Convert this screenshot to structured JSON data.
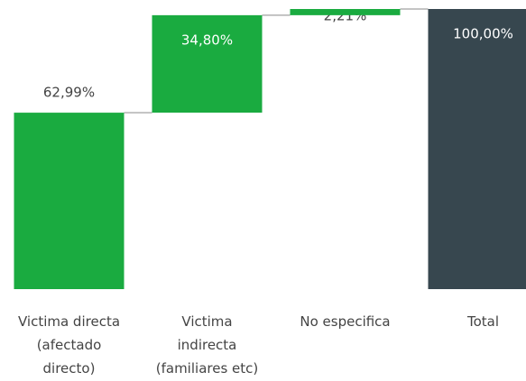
{
  "chart_data": {
    "type": "waterfall",
    "categories": [
      [
        "Victima directa",
        "(afectado",
        "directo)"
      ],
      [
        "Victima",
        "indirecta",
        "(familiares etc)"
      ],
      [
        "No especifica"
      ],
      [
        "Total"
      ]
    ],
    "values": [
      62.99,
      34.8,
      2.21,
      100
    ],
    "value_labels": [
      "62,99%",
      "34,80%",
      "2,21%",
      "100,00%"
    ],
    "total": [
      false,
      false,
      false,
      true
    ],
    "color": "#1aab40",
    "total_color": "#37474f",
    "ylim": [
      0,
      100
    ]
  }
}
